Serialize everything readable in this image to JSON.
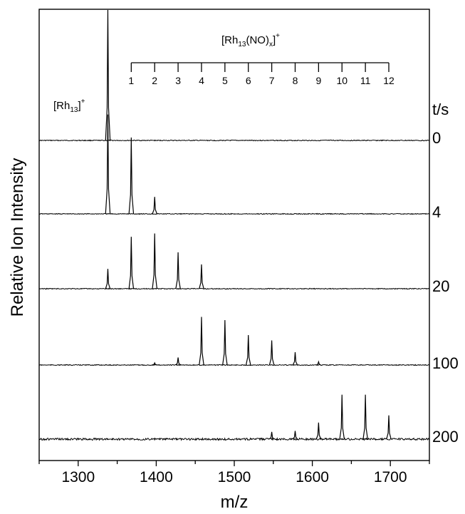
{
  "chart_data": {
    "type": "line",
    "title": "",
    "xlabel": "m/z",
    "ylabel": "Relative Ion Intensity",
    "xlim": [
      1250,
      1750
    ],
    "x_ticks": [
      1300,
      1400,
      1500,
      1600,
      1700
    ],
    "time_header": "t/s",
    "parent_peak": {
      "label_main": "[Rh",
      "label_sub": "13",
      "label_close": "]",
      "label_sup": "+",
      "mz": 1338
    },
    "nox_scale": {
      "label_main": "[Rh",
      "label_sub1": "13",
      "label_mid": "(NO)",
      "label_sub2": "x",
      "label_close": "]",
      "label_sup": "+",
      "base_mz": 1338,
      "step": 30,
      "ticks": [
        "1",
        "2",
        "3",
        "4",
        "5",
        "6",
        "7",
        "8",
        "9",
        "10",
        "11",
        "12"
      ]
    },
    "series": [
      {
        "name": "0",
        "peaks": [
          [
            1338,
            1.0
          ]
        ]
      },
      {
        "name": "4",
        "peaks": [
          [
            1338,
            0.82
          ],
          [
            1368,
            0.63
          ],
          [
            1398,
            0.14
          ]
        ]
      },
      {
        "name": "20",
        "peaks": [
          [
            1338,
            0.18
          ],
          [
            1368,
            0.47
          ],
          [
            1398,
            0.5
          ],
          [
            1428,
            0.33
          ],
          [
            1458,
            0.22
          ]
        ]
      },
      {
        "name": "100",
        "peaks": [
          [
            1398,
            0.02
          ],
          [
            1428,
            0.07
          ],
          [
            1458,
            0.45
          ],
          [
            1488,
            0.42
          ],
          [
            1518,
            0.28
          ],
          [
            1548,
            0.23
          ],
          [
            1578,
            0.12
          ],
          [
            1608,
            0.03
          ]
        ]
      },
      {
        "name": "200",
        "peaks": [
          [
            1548,
            0.07
          ],
          [
            1578,
            0.08
          ],
          [
            1608,
            0.16
          ],
          [
            1638,
            0.43
          ],
          [
            1668,
            0.43
          ],
          [
            1698,
            0.23
          ]
        ]
      }
    ]
  }
}
